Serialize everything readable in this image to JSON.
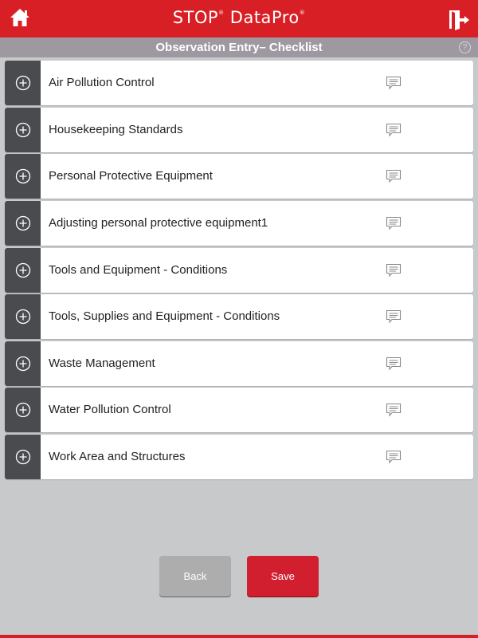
{
  "header": {
    "brand": "STOP",
    "brand_mark": "®",
    "brand2": "DataPro",
    "brand2_mark": "®"
  },
  "subheader": {
    "title": "Observation Entry– Checklist",
    "help": "?"
  },
  "items": [
    {
      "label": "Air Pollution Control"
    },
    {
      "label": "Housekeeping Standards"
    },
    {
      "label": "Personal Protective Equipment"
    },
    {
      "label": "Adjusting personal protective equipment1"
    },
    {
      "label": "Tools and Equipment - Conditions"
    },
    {
      "label": "Tools, Supplies and Equipment - Conditions"
    },
    {
      "label": "Waste Management"
    },
    {
      "label": "Water Pollution Control"
    },
    {
      "label": "Work Area and Structures"
    }
  ],
  "buttons": {
    "back": "Back",
    "save": "Save"
  },
  "colors": {
    "brand": "#d91f26",
    "subheader": "#9e99a1",
    "save": "#d21f30",
    "back": "#adadad"
  }
}
